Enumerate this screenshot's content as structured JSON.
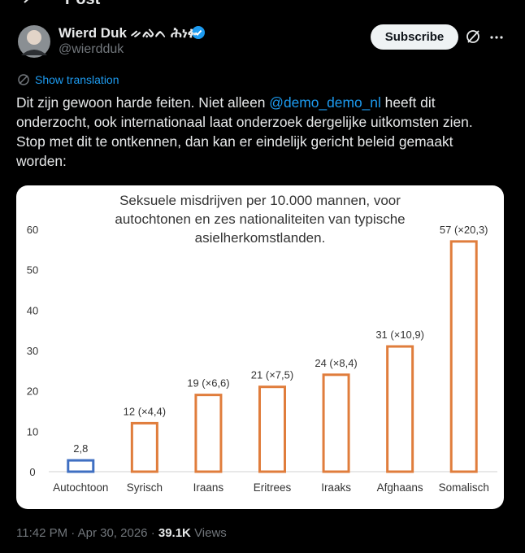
{
  "header": {
    "title": "Post"
  },
  "post": {
    "author": {
      "name": "Wierd Duk ᨀᨁᨈ ሕነፉ",
      "handle": "@wierdduk"
    },
    "subscribe": "Subscribe",
    "show_translation": "Show translation",
    "text": {
      "before": "Dit zijn gewoon harde feiten. Niet alleen ",
      "mention": "@demo_demo_nl",
      "after": " heeft dit onderzocht, ook internationaal laat onderzoek dergelijke uitkomsten zien. Stop met dit te ontkennen, dan kan er eindelijk gericht beleid gemaakt worden:"
    },
    "footer": {
      "time": "11:42 PM",
      "separator": "·",
      "date": "Apr 30, 2026",
      "views_count": "39.1K",
      "views_label": "Views"
    }
  },
  "chart_data": {
    "type": "bar",
    "title": [
      "Seksuele misdrijven per 10.000 mannen, voor",
      "autochtonen en zes nationaliteiten van typische",
      "asielherkomstlanden."
    ],
    "categories": [
      "Autochtoon",
      "Syrisch",
      "Iraans",
      "Eritrees",
      "Iraaks",
      "Afghaans",
      "Somalisch"
    ],
    "values": [
      2.8,
      12,
      19,
      21,
      24,
      31,
      57
    ],
    "value_labels": [
      "2,8",
      "12 (×4,4)",
      "19 (×6,6)",
      "21 (×7,5)",
      "24 (×8,4)",
      "31 (×10,9)",
      "57 (×20,3)"
    ],
    "colors": [
      "#3f6fc2",
      "#e07d3c",
      "#e07d3c",
      "#e07d3c",
      "#e07d3c",
      "#e07d3c",
      "#e07d3c"
    ],
    "ylim": [
      0,
      60
    ],
    "yticks": [
      0,
      10,
      20,
      30,
      40,
      50,
      60
    ],
    "grid": false
  }
}
